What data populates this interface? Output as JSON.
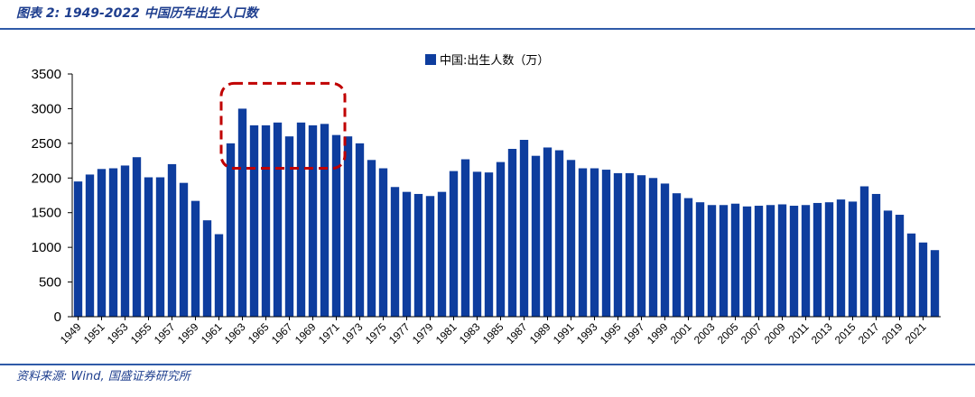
{
  "header": {
    "title": "图表 2:  1949-2022 中国历年出生人口数"
  },
  "footer": {
    "source": "资料来源: Wind, 国盛证券研究所"
  },
  "colors": {
    "bar": "#0e3d9e",
    "highlight": "#c00000",
    "rule": "#2f5aa8"
  },
  "chart_data": {
    "type": "bar",
    "categories": [
      "1949",
      "1950",
      "1951",
      "1952",
      "1953",
      "1954",
      "1955",
      "1956",
      "1957",
      "1958",
      "1959",
      "1960",
      "1961",
      "1962",
      "1963",
      "1964",
      "1965",
      "1966",
      "1967",
      "1968",
      "1969",
      "1970",
      "1971",
      "1972",
      "1973",
      "1974",
      "1975",
      "1976",
      "1977",
      "1978",
      "1979",
      "1980",
      "1981",
      "1982",
      "1983",
      "1984",
      "1985",
      "1986",
      "1987",
      "1988",
      "1989",
      "1990",
      "1991",
      "1992",
      "1993",
      "1994",
      "1995",
      "1996",
      "1997",
      "1998",
      "1999",
      "2000",
      "2001",
      "2002",
      "2003",
      "2004",
      "2005",
      "2006",
      "2007",
      "2008",
      "2009",
      "2010",
      "2011",
      "2012",
      "2013",
      "2014",
      "2015",
      "2016",
      "2017",
      "2018",
      "2019",
      "2020",
      "2021",
      "2022"
    ],
    "series": [
      {
        "name": "中国:出生人数（万）",
        "values": [
          1950,
          2050,
          2130,
          2140,
          2180,
          2300,
          2010,
          2010,
          2200,
          1930,
          1670,
          1390,
          1190,
          2500,
          3000,
          2760,
          2760,
          2800,
          2600,
          2800,
          2760,
          2780,
          2620,
          2600,
          2500,
          2260,
          2140,
          1870,
          1800,
          1770,
          1740,
          1800,
          2100,
          2270,
          2090,
          2080,
          2230,
          2420,
          2550,
          2320,
          2440,
          2400,
          2260,
          2140,
          2140,
          2120,
          2070,
          2070,
          2040,
          2000,
          1920,
          1780,
          1710,
          1650,
          1610,
          1610,
          1630,
          1590,
          1600,
          1610,
          1620,
          1600,
          1610,
          1640,
          1650,
          1690,
          1660,
          1880,
          1770,
          1530,
          1470,
          1200,
          1070,
          960
        ]
      }
    ],
    "x_tick_labels": [
      "1949",
      "1951",
      "1953",
      "1955",
      "1957",
      "1959",
      "1961",
      "1963",
      "1965",
      "1967",
      "1969",
      "1971",
      "1973",
      "1975",
      "1977",
      "1979",
      "1981",
      "1983",
      "1985",
      "1987",
      "1989",
      "1991",
      "1993",
      "1995",
      "1997",
      "1999",
      "2001",
      "2003",
      "2005",
      "2007",
      "2009",
      "2011",
      "2013",
      "2015",
      "2017",
      "2019",
      "2021"
    ],
    "y_ticks": [
      0,
      500,
      1000,
      1500,
      2000,
      2500,
      3000,
      3500
    ],
    "ylim": [
      0,
      3500
    ],
    "highlight_range": [
      "1962",
      "1971"
    ],
    "legend_position": "top-center",
    "grid": false
  }
}
